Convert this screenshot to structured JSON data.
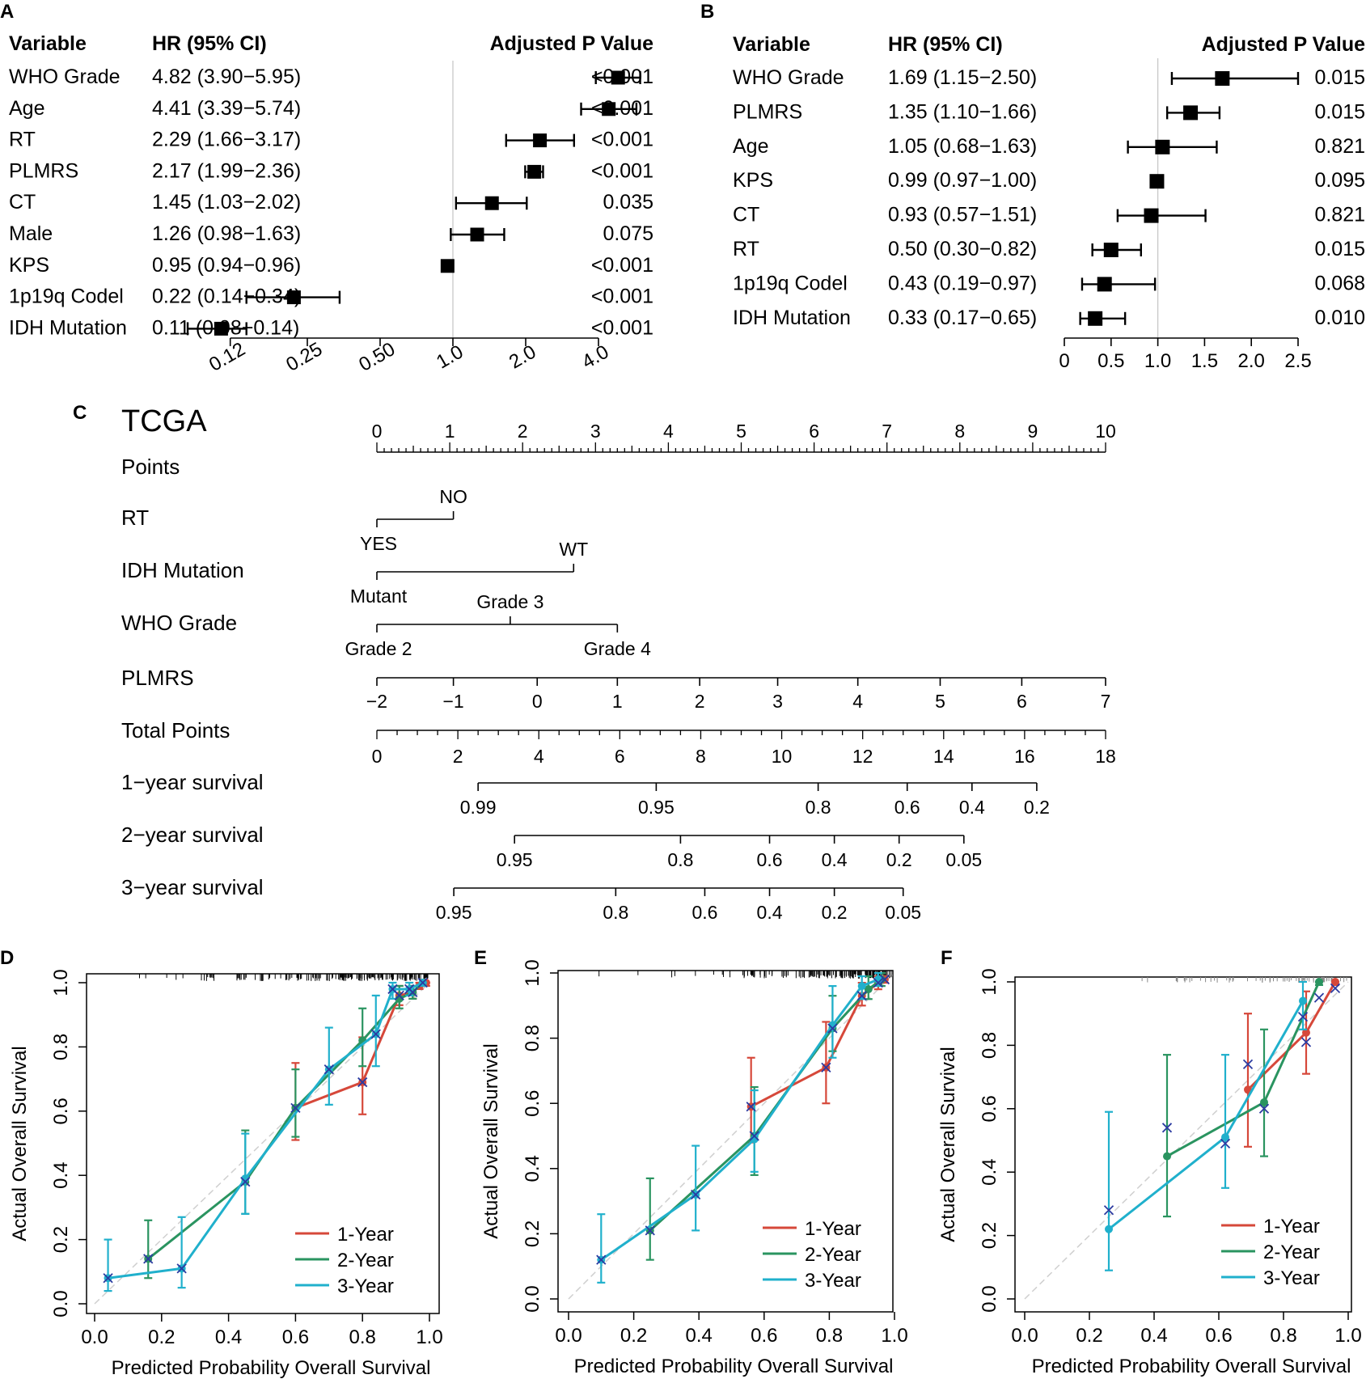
{
  "panels": {
    "A": {
      "letter": "A",
      "headers": {
        "variable": "Variable",
        "hr": "HR (95% CI)",
        "p": "Adjusted P Value"
      },
      "axis_ticks": [
        "0.12",
        "0.25",
        "0.50",
        "1.0",
        "2.0",
        "4.0"
      ],
      "axis_tick_values": [
        0.12,
        0.25,
        0.5,
        1.0,
        2.0,
        4.0
      ]
    },
    "B": {
      "letter": "B",
      "headers": {
        "variable": "Variable",
        "hr": "HR (95% CI)",
        "p": "Adjusted P Value"
      },
      "axis_ticks": [
        "0",
        "0.5",
        "1.0",
        "1.5",
        "2.0",
        "2.5"
      ],
      "axis_tick_values": [
        0,
        0.5,
        1.0,
        1.5,
        2.0,
        2.5
      ]
    },
    "C": {
      "letter": "C",
      "title": "TCGA"
    },
    "D": {
      "letter": "D"
    },
    "E": {
      "letter": "E"
    },
    "F": {
      "letter": "F"
    }
  },
  "chart_data": [
    {
      "id": "A",
      "type": "forest",
      "scale": "log2",
      "xlim": [
        0.1,
        4.8
      ],
      "reference": 1.0,
      "rows": [
        {
          "variable": "WHO Grade",
          "hr_text": "4.82 (3.90−5.95)",
          "hr": 4.82,
          "lo": 3.9,
          "hi": 5.95,
          "p": "<0.001"
        },
        {
          "variable": "Age",
          "hr_text": "4.41 (3.39−5.74)",
          "hr": 4.41,
          "lo": 3.39,
          "hi": 5.74,
          "p": "<0.001"
        },
        {
          "variable": "RT",
          "hr_text": "2.29 (1.66−3.17)",
          "hr": 2.29,
          "lo": 1.66,
          "hi": 3.17,
          "p": "<0.001"
        },
        {
          "variable": "PLMRS",
          "hr_text": "2.17 (1.99−2.36)",
          "hr": 2.17,
          "lo": 1.99,
          "hi": 2.36,
          "p": "<0.001"
        },
        {
          "variable": "CT",
          "hr_text": "1.45 (1.03−2.02)",
          "hr": 1.45,
          "lo": 1.03,
          "hi": 2.02,
          "p": "0.035"
        },
        {
          "variable": "Male",
          "hr_text": "1.26 (0.98−1.63)",
          "hr": 1.26,
          "lo": 0.98,
          "hi": 1.63,
          "p": "0.075"
        },
        {
          "variable": "KPS",
          "hr_text": "0.95 (0.94−0.96)",
          "hr": 0.95,
          "lo": 0.94,
          "hi": 0.96,
          "p": "<0.001"
        },
        {
          "variable": "1p19q Codel",
          "hr_text": "0.22 (0.14−0.34)",
          "hr": 0.22,
          "lo": 0.14,
          "hi": 0.34,
          "p": "<0.001"
        },
        {
          "variable": "IDH Mutation",
          "hr_text": "0.11 (0.08−0.14)",
          "hr": 0.11,
          "lo": 0.08,
          "hi": 0.14,
          "p": "<0.001"
        }
      ]
    },
    {
      "id": "B",
      "type": "forest",
      "scale": "linear",
      "xlim": [
        0,
        2.5
      ],
      "reference": 1.0,
      "rows": [
        {
          "variable": "WHO Grade",
          "hr_text": "1.69 (1.15−2.50)",
          "hr": 1.69,
          "lo": 1.15,
          "hi": 2.5,
          "p": "0.015"
        },
        {
          "variable": "PLMRS",
          "hr_text": "1.35 (1.10−1.66)",
          "hr": 1.35,
          "lo": 1.1,
          "hi": 1.66,
          "p": "0.015"
        },
        {
          "variable": "Age",
          "hr_text": "1.05 (0.68−1.63)",
          "hr": 1.05,
          "lo": 0.68,
          "hi": 1.63,
          "p": "0.821"
        },
        {
          "variable": "KPS",
          "hr_text": "0.99 (0.97−1.00)",
          "hr": 0.99,
          "lo": 0.97,
          "hi": 1.0,
          "p": "0.095"
        },
        {
          "variable": "CT",
          "hr_text": "0.93 (0.57−1.51)",
          "hr": 0.93,
          "lo": 0.57,
          "hi": 1.51,
          "p": "0.821"
        },
        {
          "variable": "RT",
          "hr_text": "0.50 (0.30−0.82)",
          "hr": 0.5,
          "lo": 0.3,
          "hi": 0.82,
          "p": "0.015"
        },
        {
          "variable": "1p19q Codel",
          "hr_text": "0.43 (0.19−0.97)",
          "hr": 0.43,
          "lo": 0.19,
          "hi": 0.97,
          "p": "0.068"
        },
        {
          "variable": "IDH Mutation",
          "hr_text": "0.33 (0.17−0.65)",
          "hr": 0.33,
          "lo": 0.17,
          "hi": 0.65,
          "p": "0.010"
        }
      ]
    },
    {
      "id": "C",
      "type": "nomogram",
      "title": "TCGA",
      "points_range": [
        0,
        10
      ],
      "rows": [
        {
          "label": "Points",
          "kind": "points",
          "ticks": [
            "0",
            "1",
            "2",
            "3",
            "4",
            "5",
            "6",
            "7",
            "8",
            "9",
            "10"
          ]
        },
        {
          "label": "RT",
          "kind": "categorical",
          "levels": [
            {
              "name": "YES",
              "points": 0,
              "pos": "below"
            },
            {
              "name": "NO",
              "points": 1.05,
              "pos": "above"
            }
          ]
        },
        {
          "label": "IDH Mutation",
          "kind": "categorical",
          "levels": [
            {
              "name": "Mutant",
              "points": 0,
              "pos": "below"
            },
            {
              "name": "WT",
              "points": 2.7,
              "pos": "above"
            }
          ]
        },
        {
          "label": "WHO Grade",
          "kind": "categorical",
          "levels": [
            {
              "name": "Grade 2",
              "points": 0,
              "pos": "below"
            },
            {
              "name": "Grade 3",
              "points": 1.83,
              "pos": "above"
            },
            {
              "name": "Grade 4",
              "points": 3.3,
              "pos": "below"
            }
          ]
        },
        {
          "label": "PLMRS",
          "kind": "continuous",
          "ticks": [
            {
              "t": "−2",
              "points": 0
            },
            {
              "t": "−1",
              "points": 1.05
            },
            {
              "t": "0",
              "points": 2.2
            },
            {
              "t": "1",
              "points": 3.3
            },
            {
              "t": "2",
              "points": 4.43
            },
            {
              "t": "3",
              "points": 5.5
            },
            {
              "t": "4",
              "points": 6.6
            },
            {
              "t": "5",
              "points": 7.73
            },
            {
              "t": "6",
              "points": 8.85
            },
            {
              "t": "7",
              "points": 10
            }
          ]
        },
        {
          "label": "Total Points",
          "kind": "total",
          "range": [
            0,
            18
          ],
          "ticks": [
            "0",
            "2",
            "4",
            "6",
            "8",
            "10",
            "12",
            "14",
            "16",
            "18"
          ]
        },
        {
          "label": "1−year survival",
          "kind": "survival",
          "line": [
            2.5,
            16.3
          ],
          "ticks": [
            {
              "t": "0.99",
              "total": 2.5
            },
            {
              "t": "0.95",
              "total": 6.9
            },
            {
              "t": "0.8",
              "total": 10.9
            },
            {
              "t": "0.6",
              "total": 13.1
            },
            {
              "t": "0.4",
              "total": 14.7
            },
            {
              "t": "0.2",
              "total": 16.3
            }
          ]
        },
        {
          "label": "2−year survival",
          "kind": "survival",
          "line": [
            3.4,
            14.5
          ],
          "ticks": [
            {
              "t": "0.95",
              "total": 3.4
            },
            {
              "t": "0.8",
              "total": 7.5
            },
            {
              "t": "0.6",
              "total": 9.7
            },
            {
              "t": "0.4",
              "total": 11.3
            },
            {
              "t": "0.2",
              "total": 12.9
            },
            {
              "t": "0.05",
              "total": 14.5
            }
          ]
        },
        {
          "label": "3−year survival",
          "kind": "survival",
          "line": [
            1.9,
            13.0
          ],
          "ticks": [
            {
              "t": "0.95",
              "total": 1.9
            },
            {
              "t": "0.8",
              "total": 5.9
            },
            {
              "t": "0.6",
              "total": 8.1
            },
            {
              "t": "0.4",
              "total": 9.7
            },
            {
              "t": "0.2",
              "total": 11.3
            },
            {
              "t": "0.05",
              "total": 13.0
            }
          ]
        }
      ]
    },
    {
      "id": "D",
      "type": "line",
      "title": "",
      "xlabel": "Predicted Probability Overall Survival",
      "ylabel": "Actual Overall Survival",
      "xlim": [
        0,
        1
      ],
      "ylim": [
        0,
        1
      ],
      "x_ticks": [
        "0.0",
        "0.2",
        "0.4",
        "0.6",
        "0.8",
        "1.0"
      ],
      "y_ticks": [
        "0.0",
        "0.2",
        "0.4",
        "0.6",
        "0.8",
        "1.0"
      ],
      "legend": "bottom-right",
      "series": [
        {
          "name": "1-Year",
          "color": "#d6483a",
          "x": [
            0.6,
            0.8,
            0.91,
            0.95,
            0.97,
            0.99
          ],
          "y": [
            0.61,
            0.69,
            0.96,
            0.97,
            0.99,
            1.0
          ],
          "lo": [
            0.51,
            0.59,
            0.93,
            0.95,
            0.98,
            0.99
          ],
          "hi": [
            0.75,
            0.83,
            0.99,
            0.99,
            1.0,
            1.0
          ]
        },
        {
          "name": "2-Year",
          "color": "#2a9460",
          "x": [
            0.16,
            0.45,
            0.6,
            0.8,
            0.91,
            0.95,
            0.98
          ],
          "y": [
            0.14,
            0.38,
            0.61,
            0.82,
            0.95,
            0.97,
            1.0
          ],
          "lo": [
            0.08,
            0.28,
            0.52,
            0.74,
            0.92,
            0.95,
            0.99
          ],
          "hi": [
            0.26,
            0.54,
            0.73,
            0.92,
            0.99,
            0.99,
            1.0
          ]
        },
        {
          "name": "3-Year",
          "color": "#20b0cc",
          "x": [
            0.04,
            0.26,
            0.45,
            0.7,
            0.84,
            0.89,
            0.94,
            0.98
          ],
          "y": [
            0.08,
            0.11,
            0.39,
            0.73,
            0.84,
            0.98,
            0.98,
            1.0
          ],
          "lo": [
            0.04,
            0.05,
            0.28,
            0.62,
            0.74,
            0.95,
            0.96,
            0.99
          ],
          "hi": [
            0.2,
            0.27,
            0.53,
            0.86,
            0.96,
            1.0,
            1.0,
            1.0
          ]
        }
      ],
      "observed_x": [
        0.04,
        0.16,
        0.26,
        0.45,
        0.6,
        0.7,
        0.8,
        0.84,
        0.89,
        0.91,
        0.94,
        0.95,
        0.98
      ]
    },
    {
      "id": "E",
      "type": "line",
      "title": "",
      "xlabel": "Predicted Probability Overall Survival",
      "ylabel": "Actual Overall Survival",
      "xlim": [
        0,
        1
      ],
      "ylim": [
        0,
        1
      ],
      "x_ticks": [
        "0.0",
        "0.2",
        "0.4",
        "0.6",
        "0.8",
        "1.0"
      ],
      "y_ticks": [
        "0.0",
        "0.2",
        "0.4",
        "0.6",
        "0.8",
        "1.0"
      ],
      "legend": "bottom-right",
      "series": [
        {
          "name": "1-Year",
          "color": "#d6483a",
          "x": [
            0.56,
            0.79,
            0.9,
            0.95,
            0.97
          ],
          "y": [
            0.59,
            0.71,
            0.93,
            0.97,
            0.98
          ],
          "lo": [
            0.48,
            0.6,
            0.9,
            0.95,
            0.97
          ],
          "hi": [
            0.74,
            0.85,
            0.97,
            0.99,
            0.99
          ]
        },
        {
          "name": "2-Year",
          "color": "#2a9460",
          "x": [
            0.25,
            0.57,
            0.81,
            0.92,
            0.96
          ],
          "y": [
            0.21,
            0.5,
            0.83,
            0.95,
            0.98
          ],
          "lo": [
            0.12,
            0.38,
            0.76,
            0.92,
            0.96
          ],
          "hi": [
            0.37,
            0.65,
            0.93,
            0.99,
            1.0
          ]
        },
        {
          "name": "3-Year",
          "color": "#20b0cc",
          "x": [
            0.1,
            0.39,
            0.57,
            0.81,
            0.9,
            0.95
          ],
          "y": [
            0.12,
            0.32,
            0.49,
            0.84,
            0.96,
            0.98
          ],
          "lo": [
            0.05,
            0.21,
            0.39,
            0.74,
            0.92,
            0.96
          ],
          "hi": [
            0.26,
            0.47,
            0.64,
            0.96,
            0.99,
            1.0
          ]
        }
      ],
      "observed_x": [
        0.1,
        0.25,
        0.39,
        0.56,
        0.57,
        0.79,
        0.81,
        0.9,
        0.95,
        0.97
      ]
    },
    {
      "id": "F",
      "type": "line",
      "title": "",
      "xlabel": "Predicted Probability Overall Survival",
      "ylabel": "Actual Overall Survival",
      "xlim": [
        0,
        1
      ],
      "ylim": [
        0,
        1
      ],
      "x_ticks": [
        "0.0",
        "0.2",
        "0.4",
        "0.6",
        "0.8",
        "1.0"
      ],
      "y_ticks": [
        "0.0",
        "0.2",
        "0.4",
        "0.6",
        "0.8",
        "1.0"
      ],
      "legend": "bottom-right",
      "series": [
        {
          "name": "1-Year",
          "color": "#d6483a",
          "x": [
            0.69,
            0.87,
            0.96
          ],
          "y": [
            0.66,
            0.84,
            1.0
          ],
          "lo": [
            0.48,
            0.71,
            0.99
          ],
          "hi": [
            0.9,
            0.97,
            1.0
          ]
        },
        {
          "name": "2-Year",
          "color": "#2a9460",
          "x": [
            0.44,
            0.74,
            0.91
          ],
          "y": [
            0.45,
            0.62,
            1.0
          ],
          "lo": [
            0.26,
            0.45,
            0.99
          ],
          "hi": [
            0.77,
            0.85,
            1.0
          ]
        },
        {
          "name": "3-Year",
          "color": "#20b0cc",
          "x": [
            0.26,
            0.62,
            0.86
          ],
          "y": [
            0.22,
            0.51,
            0.94
          ],
          "lo": [
            0.09,
            0.35,
            0.85
          ],
          "hi": [
            0.59,
            0.77,
            1.0
          ]
        }
      ],
      "observed_x": [
        0.26,
        0.44,
        0.62,
        0.69,
        0.74,
        0.86,
        0.87,
        0.91,
        0.96
      ],
      "observed_y": [
        0.28,
        0.54,
        0.49,
        0.74,
        0.6,
        0.89,
        0.81,
        0.95,
        0.98
      ]
    }
  ]
}
